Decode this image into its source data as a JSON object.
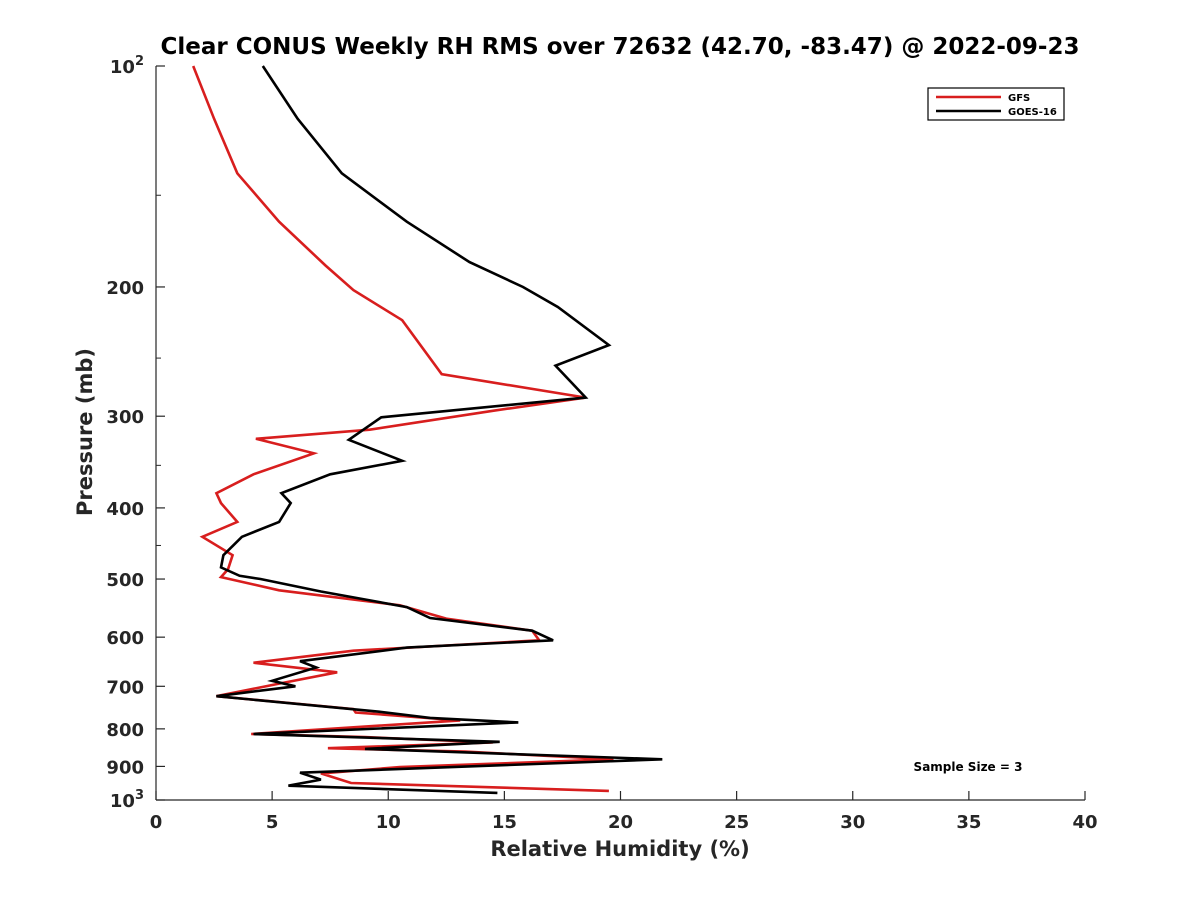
{
  "chart_data": {
    "type": "line",
    "title": "Clear CONUS Weekly RH RMS over 72632 (42.70, -83.47) @ 2022-09-23",
    "xlabel": "Relative Humidity (%)",
    "ylabel": "Pressure (mb)",
    "xlim": [
      0,
      40
    ],
    "ylim": [
      100,
      1000
    ],
    "y_scale": "log",
    "y_reversed": true,
    "xticks": [
      {
        "value": 0,
        "label": "0"
      },
      {
        "value": 5,
        "label": "5"
      },
      {
        "value": 10,
        "label": "10"
      },
      {
        "value": 15,
        "label": "15"
      },
      {
        "value": 20,
        "label": "20"
      },
      {
        "value": 25,
        "label": "25"
      },
      {
        "value": 30,
        "label": "30"
      },
      {
        "value": 35,
        "label": "35"
      },
      {
        "value": 40,
        "label": "40"
      }
    ],
    "yticks": [
      {
        "value": 100,
        "base": "10",
        "exp": "2"
      },
      {
        "value": 200,
        "base": "200",
        "exp": ""
      },
      {
        "value": 300,
        "base": "300",
        "exp": ""
      },
      {
        "value": 400,
        "base": "400",
        "exp": ""
      },
      {
        "value": 500,
        "base": "500",
        "exp": ""
      },
      {
        "value": 600,
        "base": "600",
        "exp": ""
      },
      {
        "value": 700,
        "base": "700",
        "exp": ""
      },
      {
        "value": 800,
        "base": "800",
        "exp": ""
      },
      {
        "value": 900,
        "base": "900",
        "exp": ""
      },
      {
        "value": 1000,
        "base": "10",
        "exp": "3"
      }
    ],
    "grid": false,
    "legend_position": "top-right",
    "annotation": "Sample Size = 3",
    "series": [
      {
        "name": "GFS",
        "color": "#d81e1e",
        "points": [
          [
            1.6,
            100
          ],
          [
            2.5,
            118
          ],
          [
            3.5,
            140
          ],
          [
            5.3,
            163
          ],
          [
            7.3,
            187
          ],
          [
            8.5,
            202
          ],
          [
            10.6,
            222
          ],
          [
            12.3,
            263
          ],
          [
            18.5,
            283
          ],
          [
            14.5,
            295
          ],
          [
            9.2,
            313
          ],
          [
            4.3,
            322
          ],
          [
            6.8,
            337
          ],
          [
            4.2,
            360
          ],
          [
            2.6,
            382
          ],
          [
            2.8,
            394
          ],
          [
            3.5,
            418
          ],
          [
            2.0,
            438
          ],
          [
            3.3,
            464
          ],
          [
            3.1,
            485
          ],
          [
            2.8,
            497
          ],
          [
            5.3,
            518
          ],
          [
            10.5,
            543
          ],
          [
            12.5,
            566
          ],
          [
            16.2,
            588
          ],
          [
            16.5,
            606
          ],
          [
            8.5,
            626
          ],
          [
            4.2,
            650
          ],
          [
            7.8,
            670
          ],
          [
            5.3,
            694
          ],
          [
            2.6,
            722
          ],
          [
            8.5,
            752
          ],
          [
            8.6,
            760
          ],
          [
            13.1,
            779
          ],
          [
            4.1,
            813
          ],
          [
            9.0,
            821
          ],
          [
            14.5,
            835
          ],
          [
            7.4,
            850
          ],
          [
            13.3,
            859
          ],
          [
            19.7,
            880
          ],
          [
            10.5,
            902
          ],
          [
            7.1,
            920
          ],
          [
            8.4,
            948
          ],
          [
            19.5,
            972
          ]
        ]
      },
      {
        "name": "GOES-16",
        "color": "#000000",
        "points": [
          [
            4.6,
            100
          ],
          [
            6.1,
            118
          ],
          [
            8.0,
            140
          ],
          [
            10.8,
            163
          ],
          [
            13.5,
            185
          ],
          [
            15.8,
            200
          ],
          [
            17.3,
            213
          ],
          [
            19.5,
            240
          ],
          [
            17.2,
            256
          ],
          [
            18.5,
            283
          ],
          [
            9.7,
            301
          ],
          [
            8.3,
            323
          ],
          [
            10.6,
            345
          ],
          [
            7.5,
            360
          ],
          [
            5.4,
            382
          ],
          [
            5.8,
            394
          ],
          [
            5.3,
            418
          ],
          [
            3.7,
            438
          ],
          [
            2.9,
            464
          ],
          [
            2.8,
            482
          ],
          [
            3.6,
            495
          ],
          [
            4.5,
            500
          ],
          [
            7.1,
            520
          ],
          [
            10.8,
            546
          ],
          [
            11.8,
            565
          ],
          [
            16.2,
            588
          ],
          [
            17.1,
            606
          ],
          [
            10.8,
            620
          ],
          [
            6.2,
            647
          ],
          [
            6.9,
            660
          ],
          [
            5.0,
            688
          ],
          [
            6.0,
            700
          ],
          [
            2.6,
            722
          ],
          [
            9.6,
            758
          ],
          [
            11.8,
            773
          ],
          [
            15.6,
            784
          ],
          [
            4.2,
            813
          ],
          [
            14.8,
            833
          ],
          [
            9.0,
            852
          ],
          [
            21.8,
            880
          ],
          [
            6.2,
            918
          ],
          [
            7.1,
            938
          ],
          [
            5.7,
            956
          ],
          [
            14.7,
            978
          ]
        ]
      }
    ]
  }
}
